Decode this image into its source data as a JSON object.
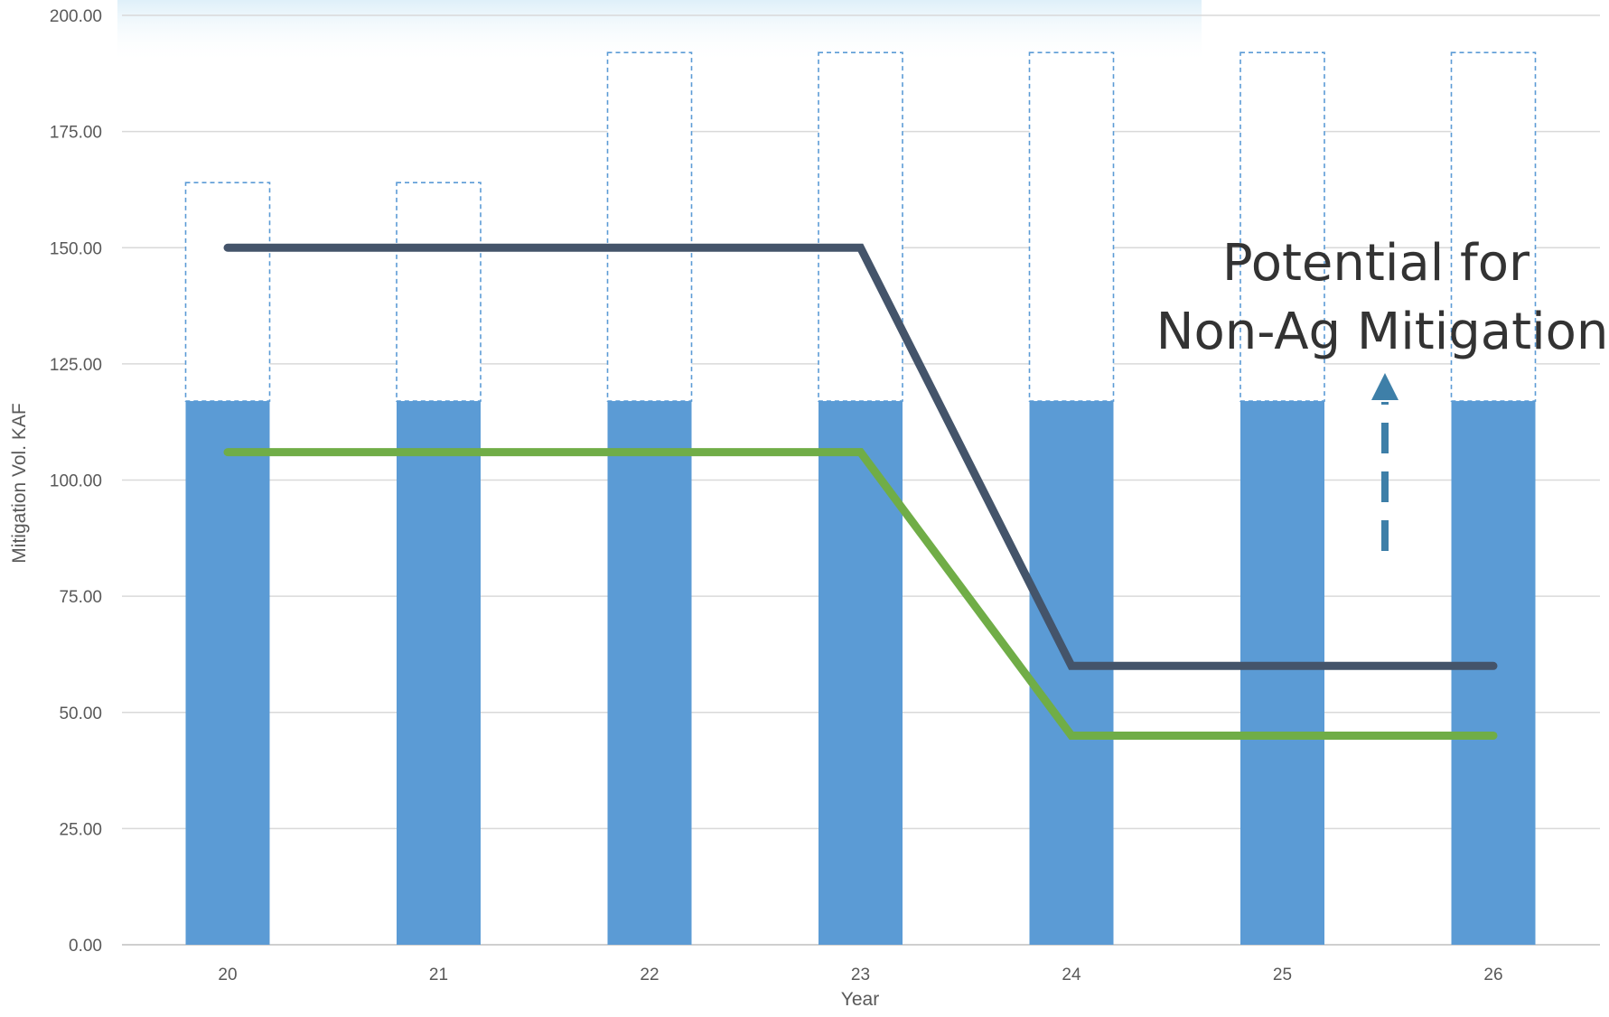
{
  "chart_data": {
    "type": "bar",
    "categories": [
      "20",
      "21",
      "22",
      "23",
      "24",
      "25",
      "26"
    ],
    "bars": {
      "solid_values": [
        117,
        117,
        117,
        117,
        117,
        117,
        117
      ],
      "dashed_totals": [
        164,
        164,
        192,
        192,
        192,
        192,
        192
      ]
    },
    "series": [
      {
        "values": [
          150,
          150,
          150,
          150,
          60,
          60,
          60
        ],
        "color": "#44546A"
      },
      {
        "values": [
          106,
          106,
          106,
          106,
          45,
          45,
          45
        ],
        "color": "#70AD47"
      }
    ],
    "xlabel": "Year",
    "ylabel": "Mitigation Vol. KAF",
    "ylim": [
      0,
      200
    ],
    "yticks": [
      "0.00",
      "25.00",
      "50.00",
      "75.00",
      "100.00",
      "125.00",
      "150.00",
      "175.00",
      "200.00"
    ],
    "grid": true,
    "bar_color": "#5B9BD5",
    "annotation": {
      "lines": [
        "Potential for",
        "Non-Ag Mitigation"
      ],
      "arrow_icon": "dashed-up-arrow-icon",
      "arrow_color": "#3E7FA8"
    }
  }
}
